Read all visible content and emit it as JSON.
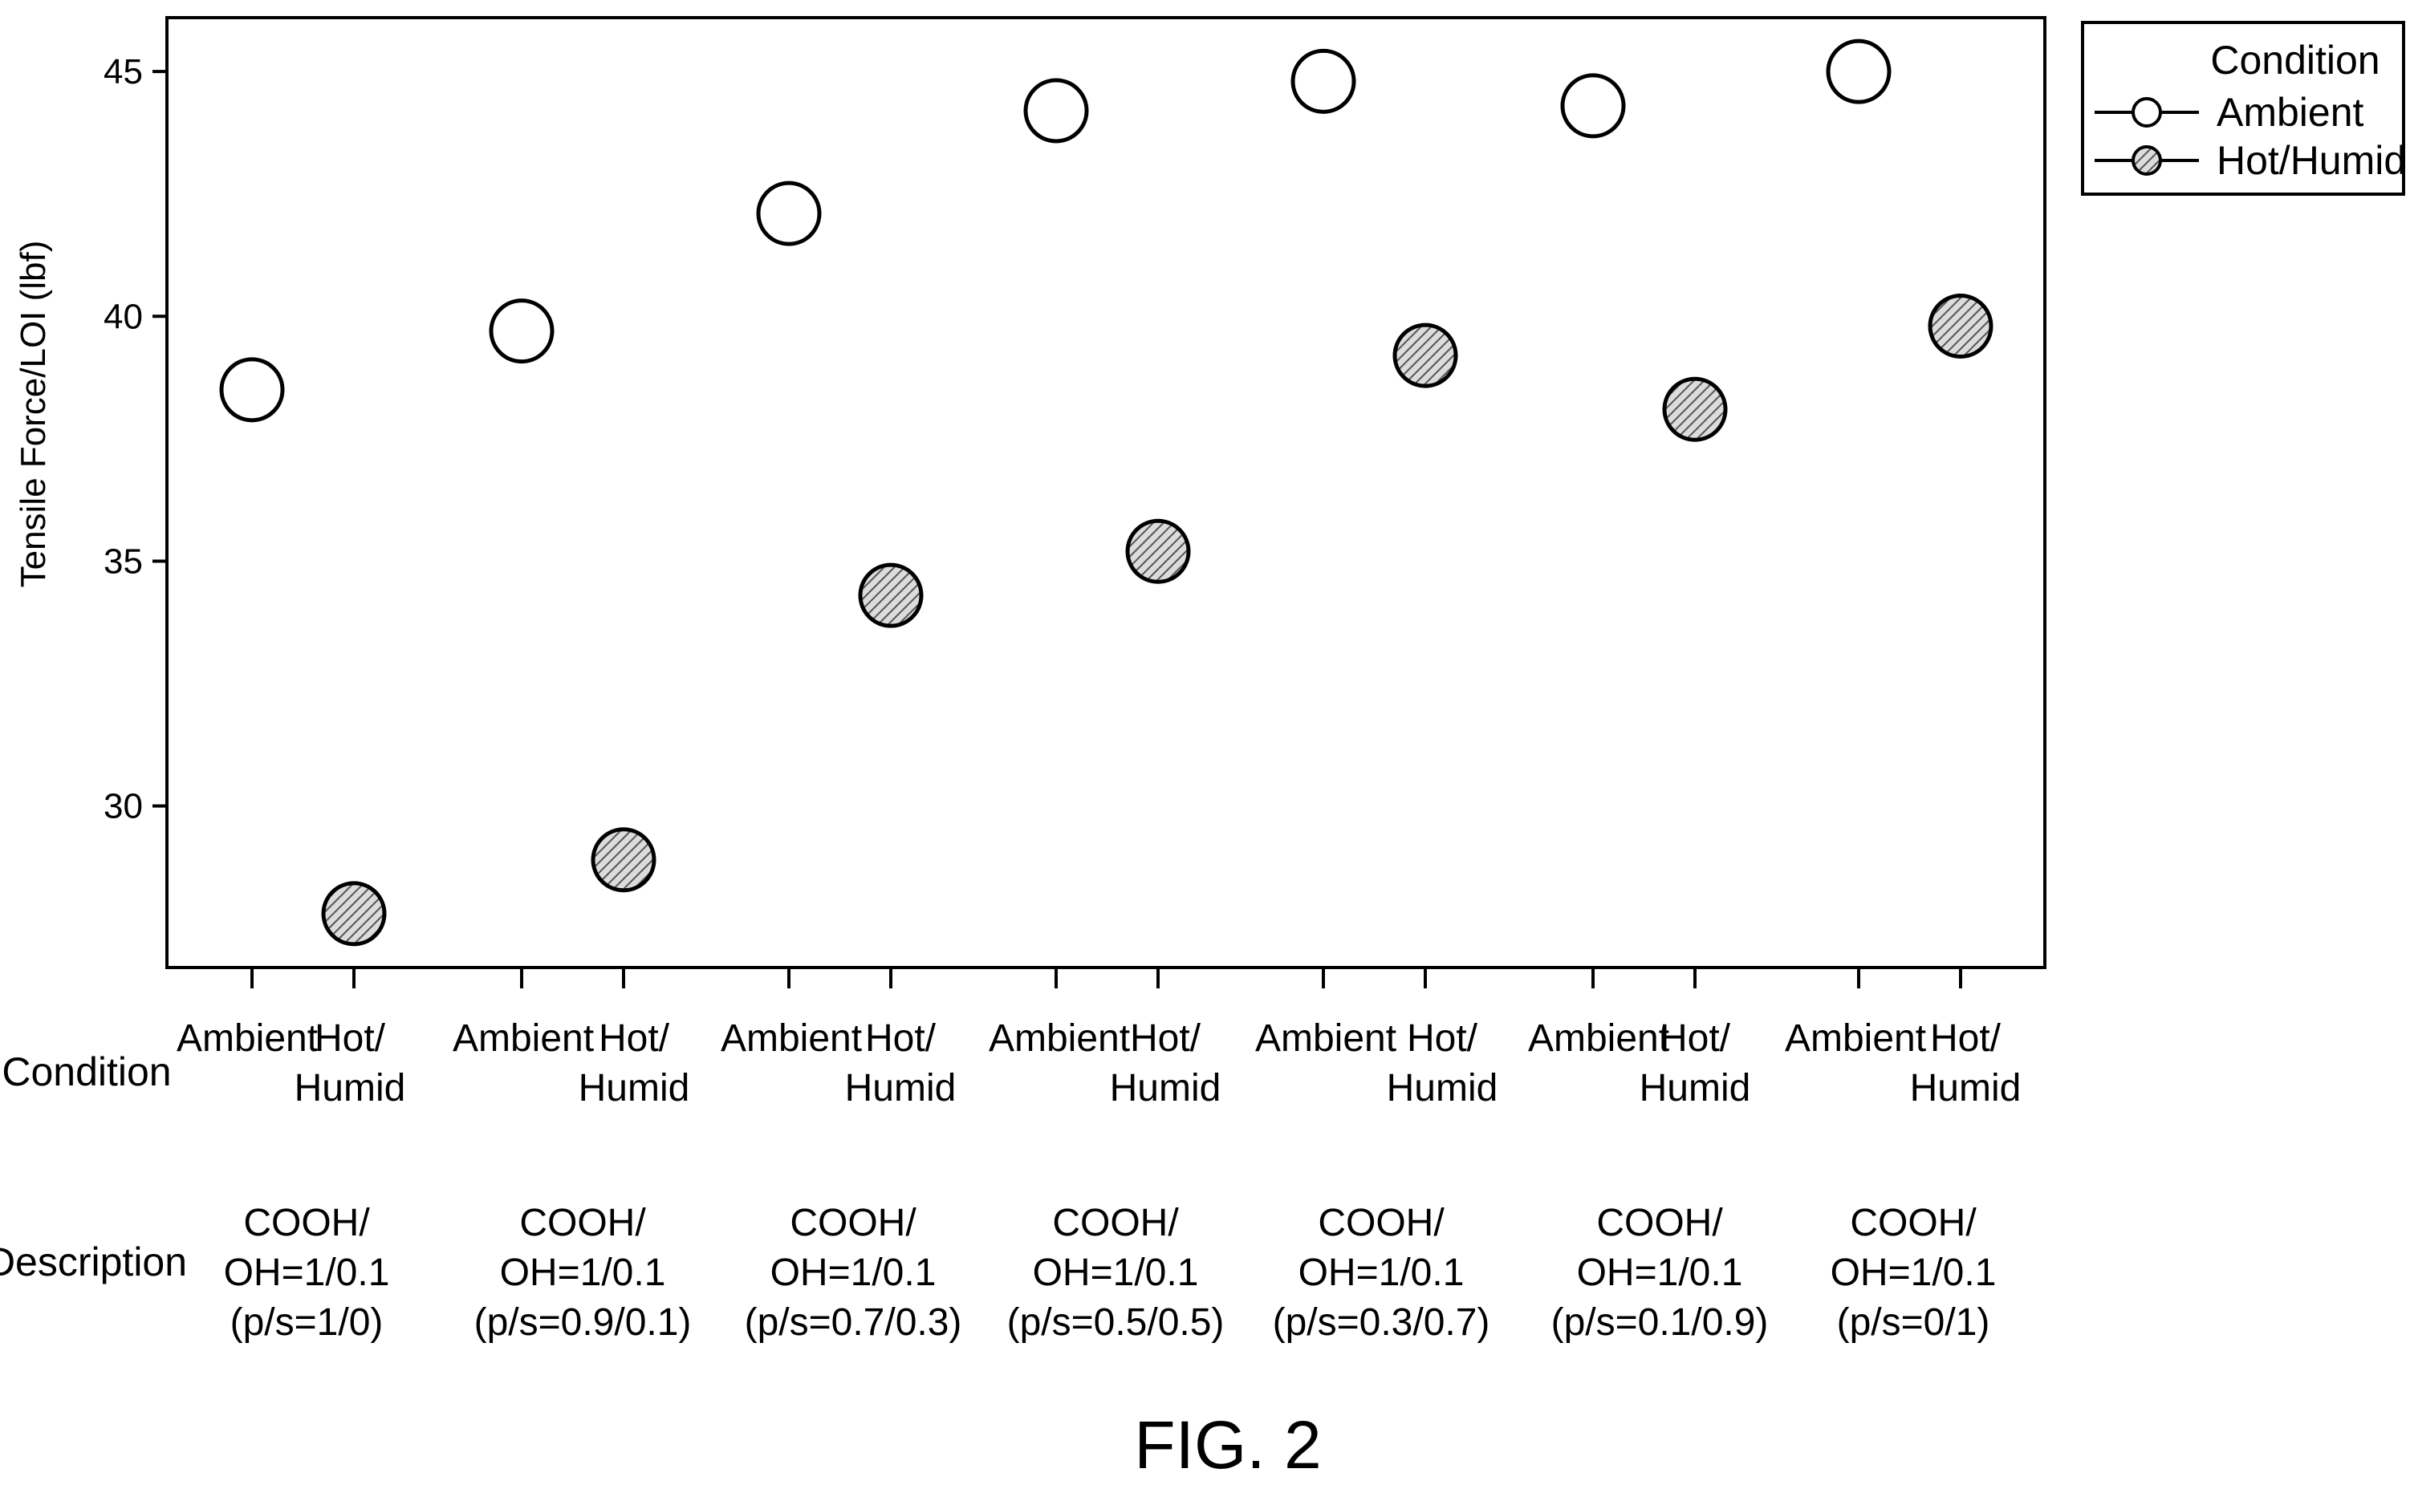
{
  "chart_data": {
    "type": "scatter",
    "ylabel": "Tensile Force/LOI (lbf)",
    "ylim": [
      26.7,
      46.1
    ],
    "yticks": [
      30,
      35,
      40,
      45
    ],
    "grid": false,
    "legend": {
      "title": "Condition",
      "placement": "top-right (outside plot)",
      "entries": [
        "Ambient",
        "Hot/Humid"
      ]
    },
    "row_labels": {
      "condition": "Condition",
      "description": "Description"
    },
    "condition_labels": {
      "ambient": [
        "Ambient"
      ],
      "hot_humid": [
        "Hot/",
        "Humid"
      ]
    },
    "groups": [
      {
        "description": [
          "COOH/",
          "OH=1/0.1",
          "(p/s=1/0)"
        ]
      },
      {
        "description": [
          "COOH/",
          "OH=1/0.1",
          "(p/s=0.9/0.1)"
        ]
      },
      {
        "description": [
          "COOH/",
          "OH=1/0.1",
          "(p/s=0.7/0.3)"
        ]
      },
      {
        "description": [
          "COOH/",
          "OH=1/0.1",
          "(p/s=0.5/0.5)"
        ]
      },
      {
        "description": [
          "COOH/",
          "OH=1/0.1",
          "(p/s=0.3/0.7)"
        ]
      },
      {
        "description": [
          "COOH/",
          "OH=1/0.1",
          "(p/s=0.1/0.9)"
        ]
      },
      {
        "description": [
          "COOH/",
          "OH=1/0.1",
          "(p/s=0/1)"
        ]
      }
    ],
    "series": [
      {
        "name": "Ambient",
        "marker": "open-circle",
        "values": [
          38.5,
          39.7,
          42.1,
          44.2,
          44.8,
          44.3,
          45.0
        ]
      },
      {
        "name": "Hot/Humid",
        "marker": "hatched-circle",
        "values": [
          27.8,
          28.9,
          34.3,
          35.2,
          39.2,
          38.1,
          39.8
        ]
      }
    ]
  },
  "figure_label": "FIG. 2",
  "colors": {
    "line": "#000000",
    "hatch": "#555555",
    "hatch_fill": "#dcdcdc",
    "background": "#ffffff"
  }
}
